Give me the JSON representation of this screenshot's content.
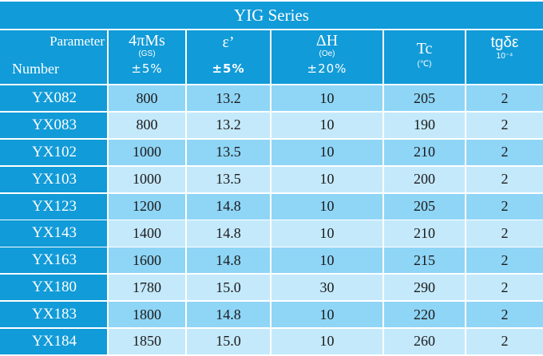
{
  "title": "YIG Series",
  "header": {
    "parameter": "Parameter",
    "number": "Number",
    "ms": {
      "main": "4πMs",
      "unit": "(GS)",
      "tol": "±5%"
    },
    "eps": {
      "main": "ε’",
      "tol": "±5%"
    },
    "dh": {
      "main": "ΔH",
      "unit": "(Oe)",
      "tol": "±20%"
    },
    "tc": {
      "main": "Tc",
      "unit": "(℃)"
    },
    "tg": {
      "main": "tgδε",
      "unit": "10⁻⁴"
    }
  },
  "rows": [
    [
      "YX082",
      "800",
      "13.2",
      "10",
      "205",
      "2"
    ],
    [
      "YX083",
      "800",
      "13.2",
      "10",
      "190",
      "2"
    ],
    [
      "YX102",
      "1000",
      "13.5",
      "10",
      "210",
      "2"
    ],
    [
      "YX103",
      "1000",
      "13.5",
      "10",
      "200",
      "2"
    ],
    [
      "YX123",
      "1200",
      "14.8",
      "10",
      "205",
      "2"
    ],
    [
      "YX143",
      "1400",
      "14.8",
      "10",
      "210",
      "2"
    ],
    [
      "YX163",
      "1600",
      "14.8",
      "10",
      "215",
      "2"
    ],
    [
      "YX180",
      "1780",
      "15.0",
      "30",
      "290",
      "2"
    ],
    [
      "YX183",
      "1800",
      "14.8",
      "10",
      "220",
      "2"
    ],
    [
      "YX184",
      "1850",
      "15.0",
      "10",
      "260",
      "2"
    ]
  ],
  "colors": {
    "header_blue": "#119bd8",
    "row_dark": "#8fd5f6",
    "row_light": "#c4e9fb"
  }
}
